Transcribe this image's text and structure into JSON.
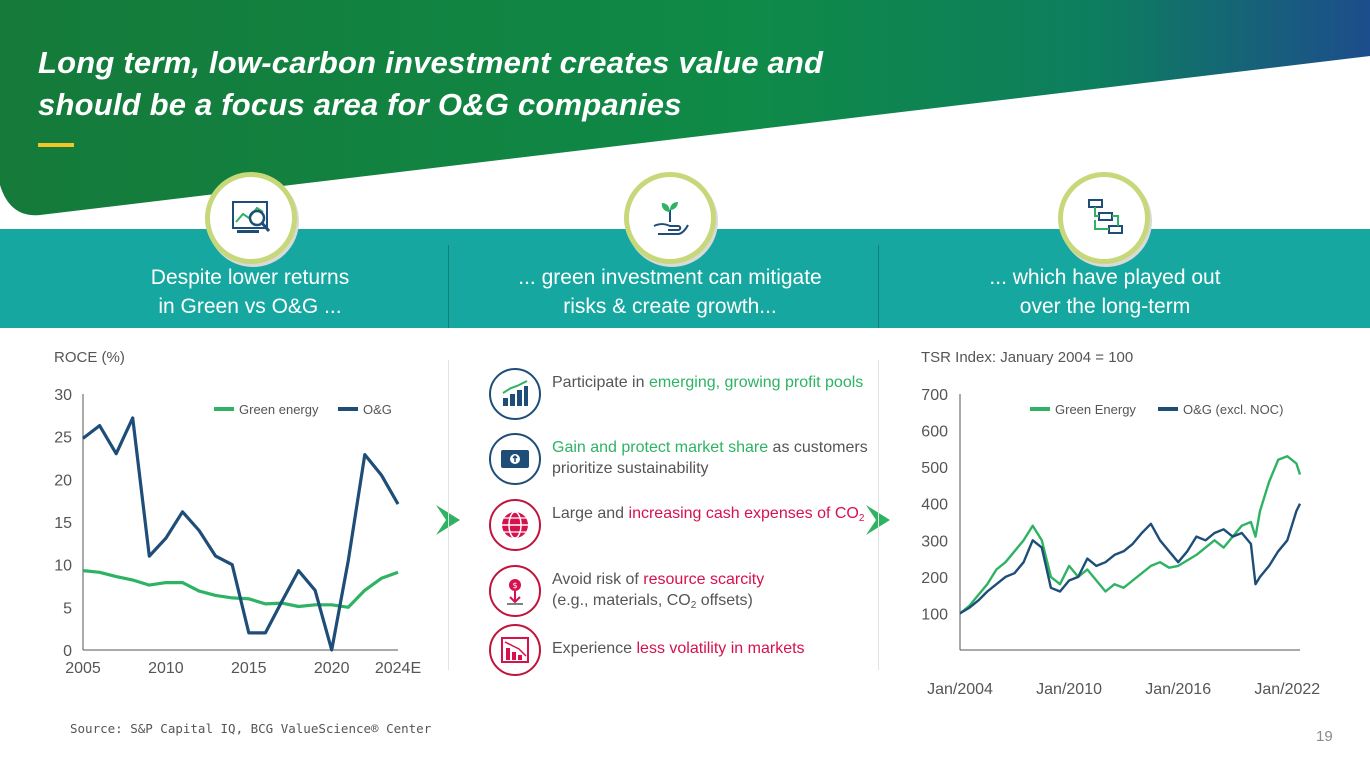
{
  "title_line1": "Long term, low-carbon investment creates value and",
  "title_line2": "should be a focus area for O&G companies",
  "columns": [
    {
      "line1": "Despite lower returns",
      "line2": "in Green vs O&G ..."
    },
    {
      "line1": "... green investment can mitigate",
      "line2": "risks & create growth..."
    },
    {
      "line1": "... which have played out",
      "line2": "over the long-term"
    }
  ],
  "bullets": [
    {
      "pre": "Participate in ",
      "hl": "emerging, growing profit pools",
      "post": "",
      "hl_color": "green",
      "icon": "bar-chart-growth-icon"
    },
    {
      "pre": "",
      "hl": "Gain and protect market share",
      "post": " as customers prioritize sustainability",
      "hl_color": "green",
      "icon": "money-bill-icon"
    },
    {
      "pre": "Large and ",
      "hl": "increasing cash expenses of CO",
      "sub": "2",
      "post": "",
      "hl_color": "red",
      "icon": "globe-icon"
    },
    {
      "pre": "Avoid risk of ",
      "hl": "resource scarcity",
      "post": "",
      "line2_pre": "(e.g., materials, CO",
      "line2_sub": "2",
      "line2_post": " offsets)",
      "hl_color": "red",
      "icon": "resource-drop-icon"
    },
    {
      "pre": "Experience ",
      "hl": "less volatility in markets",
      "post": "",
      "hl_color": "red",
      "icon": "declining-chart-icon"
    }
  ],
  "source": "Source: S&P Capital IQ, BCG ValueScience® Center",
  "page_number": "19",
  "colors": {
    "green": "#2eb364",
    "navy": "#1e4d78",
    "teal": "#16a8a0",
    "red": "#d6114e",
    "lime": "#c6d87a"
  },
  "chart_data": [
    {
      "type": "line",
      "title": "ROCE (%)",
      "x": [
        2005,
        2006,
        2007,
        2008,
        2009,
        2010,
        2011,
        2012,
        2013,
        2014,
        2015,
        2016,
        2017,
        2018,
        2019,
        2020,
        2021,
        2022,
        2023,
        2024
      ],
      "xticks": [
        "2005",
        "2010",
        "2015",
        "2020",
        "2024E"
      ],
      "yticks": [
        "0",
        "5",
        "10",
        "15",
        "20",
        "25",
        "30"
      ],
      "ylim": [
        0,
        30
      ],
      "legend_position": "top-right",
      "series": [
        {
          "name": "Green energy",
          "color": "#2eb364",
          "values": [
            9.3,
            9.1,
            8.6,
            8.2,
            7.6,
            7.9,
            7.9,
            6.9,
            6.4,
            6.1,
            6.0,
            5.4,
            5.5,
            5.1,
            5.3,
            5.3,
            5.0,
            7.0,
            8.4,
            9.1
          ]
        },
        {
          "name": "O&G",
          "color": "#1e4d78",
          "values": [
            24.8,
            26.3,
            23.0,
            27.2,
            11.0,
            13.1,
            16.2,
            14.0,
            11.0,
            10.0,
            2.0,
            2.0,
            5.7,
            9.3,
            7.0,
            0.0,
            10.5,
            22.9,
            20.5,
            17.1
          ]
        }
      ]
    },
    {
      "type": "line",
      "title": "TSR Index: January 2004 = 100",
      "xticks": [
        "Jan/2004",
        "Jan/2010",
        "Jan/2016",
        "Jan/2022"
      ],
      "yticks": [
        "100",
        "200",
        "300",
        "400",
        "500",
        "600",
        "700"
      ],
      "ylim": [
        0,
        700
      ],
      "legend_position": "top",
      "x": [
        2004.0,
        2004.5,
        2005.0,
        2005.5,
        2006.0,
        2006.5,
        2007.0,
        2007.5,
        2008.0,
        2008.5,
        2009.0,
        2009.5,
        2010.0,
        2010.5,
        2011.0,
        2011.5,
        2012.0,
        2012.5,
        2013.0,
        2013.5,
        2014.0,
        2014.5,
        2015.0,
        2015.5,
        2016.0,
        2016.5,
        2017.0,
        2017.5,
        2018.0,
        2018.5,
        2019.0,
        2019.5,
        2020.0,
        2020.25,
        2020.5,
        2021.0,
        2021.5,
        2022.0,
        2022.5,
        2022.7
      ],
      "series": [
        {
          "name": "Green Energy",
          "color": "#2eb364",
          "values": [
            100,
            120,
            150,
            180,
            220,
            240,
            270,
            300,
            340,
            300,
            200,
            180,
            230,
            200,
            220,
            190,
            160,
            180,
            170,
            190,
            210,
            230,
            240,
            225,
            230,
            245,
            260,
            280,
            300,
            280,
            310,
            340,
            350,
            310,
            380,
            460,
            520,
            530,
            510,
            480
          ]
        },
        {
          "name": "O&G (excl. NOC)",
          "color": "#1e4d78",
          "values": [
            100,
            115,
            135,
            160,
            180,
            200,
            210,
            240,
            300,
            280,
            170,
            160,
            190,
            200,
            250,
            230,
            240,
            260,
            270,
            290,
            320,
            345,
            300,
            270,
            240,
            270,
            310,
            300,
            320,
            330,
            310,
            320,
            290,
            180,
            200,
            230,
            270,
            300,
            380,
            400
          ]
        }
      ]
    }
  ]
}
